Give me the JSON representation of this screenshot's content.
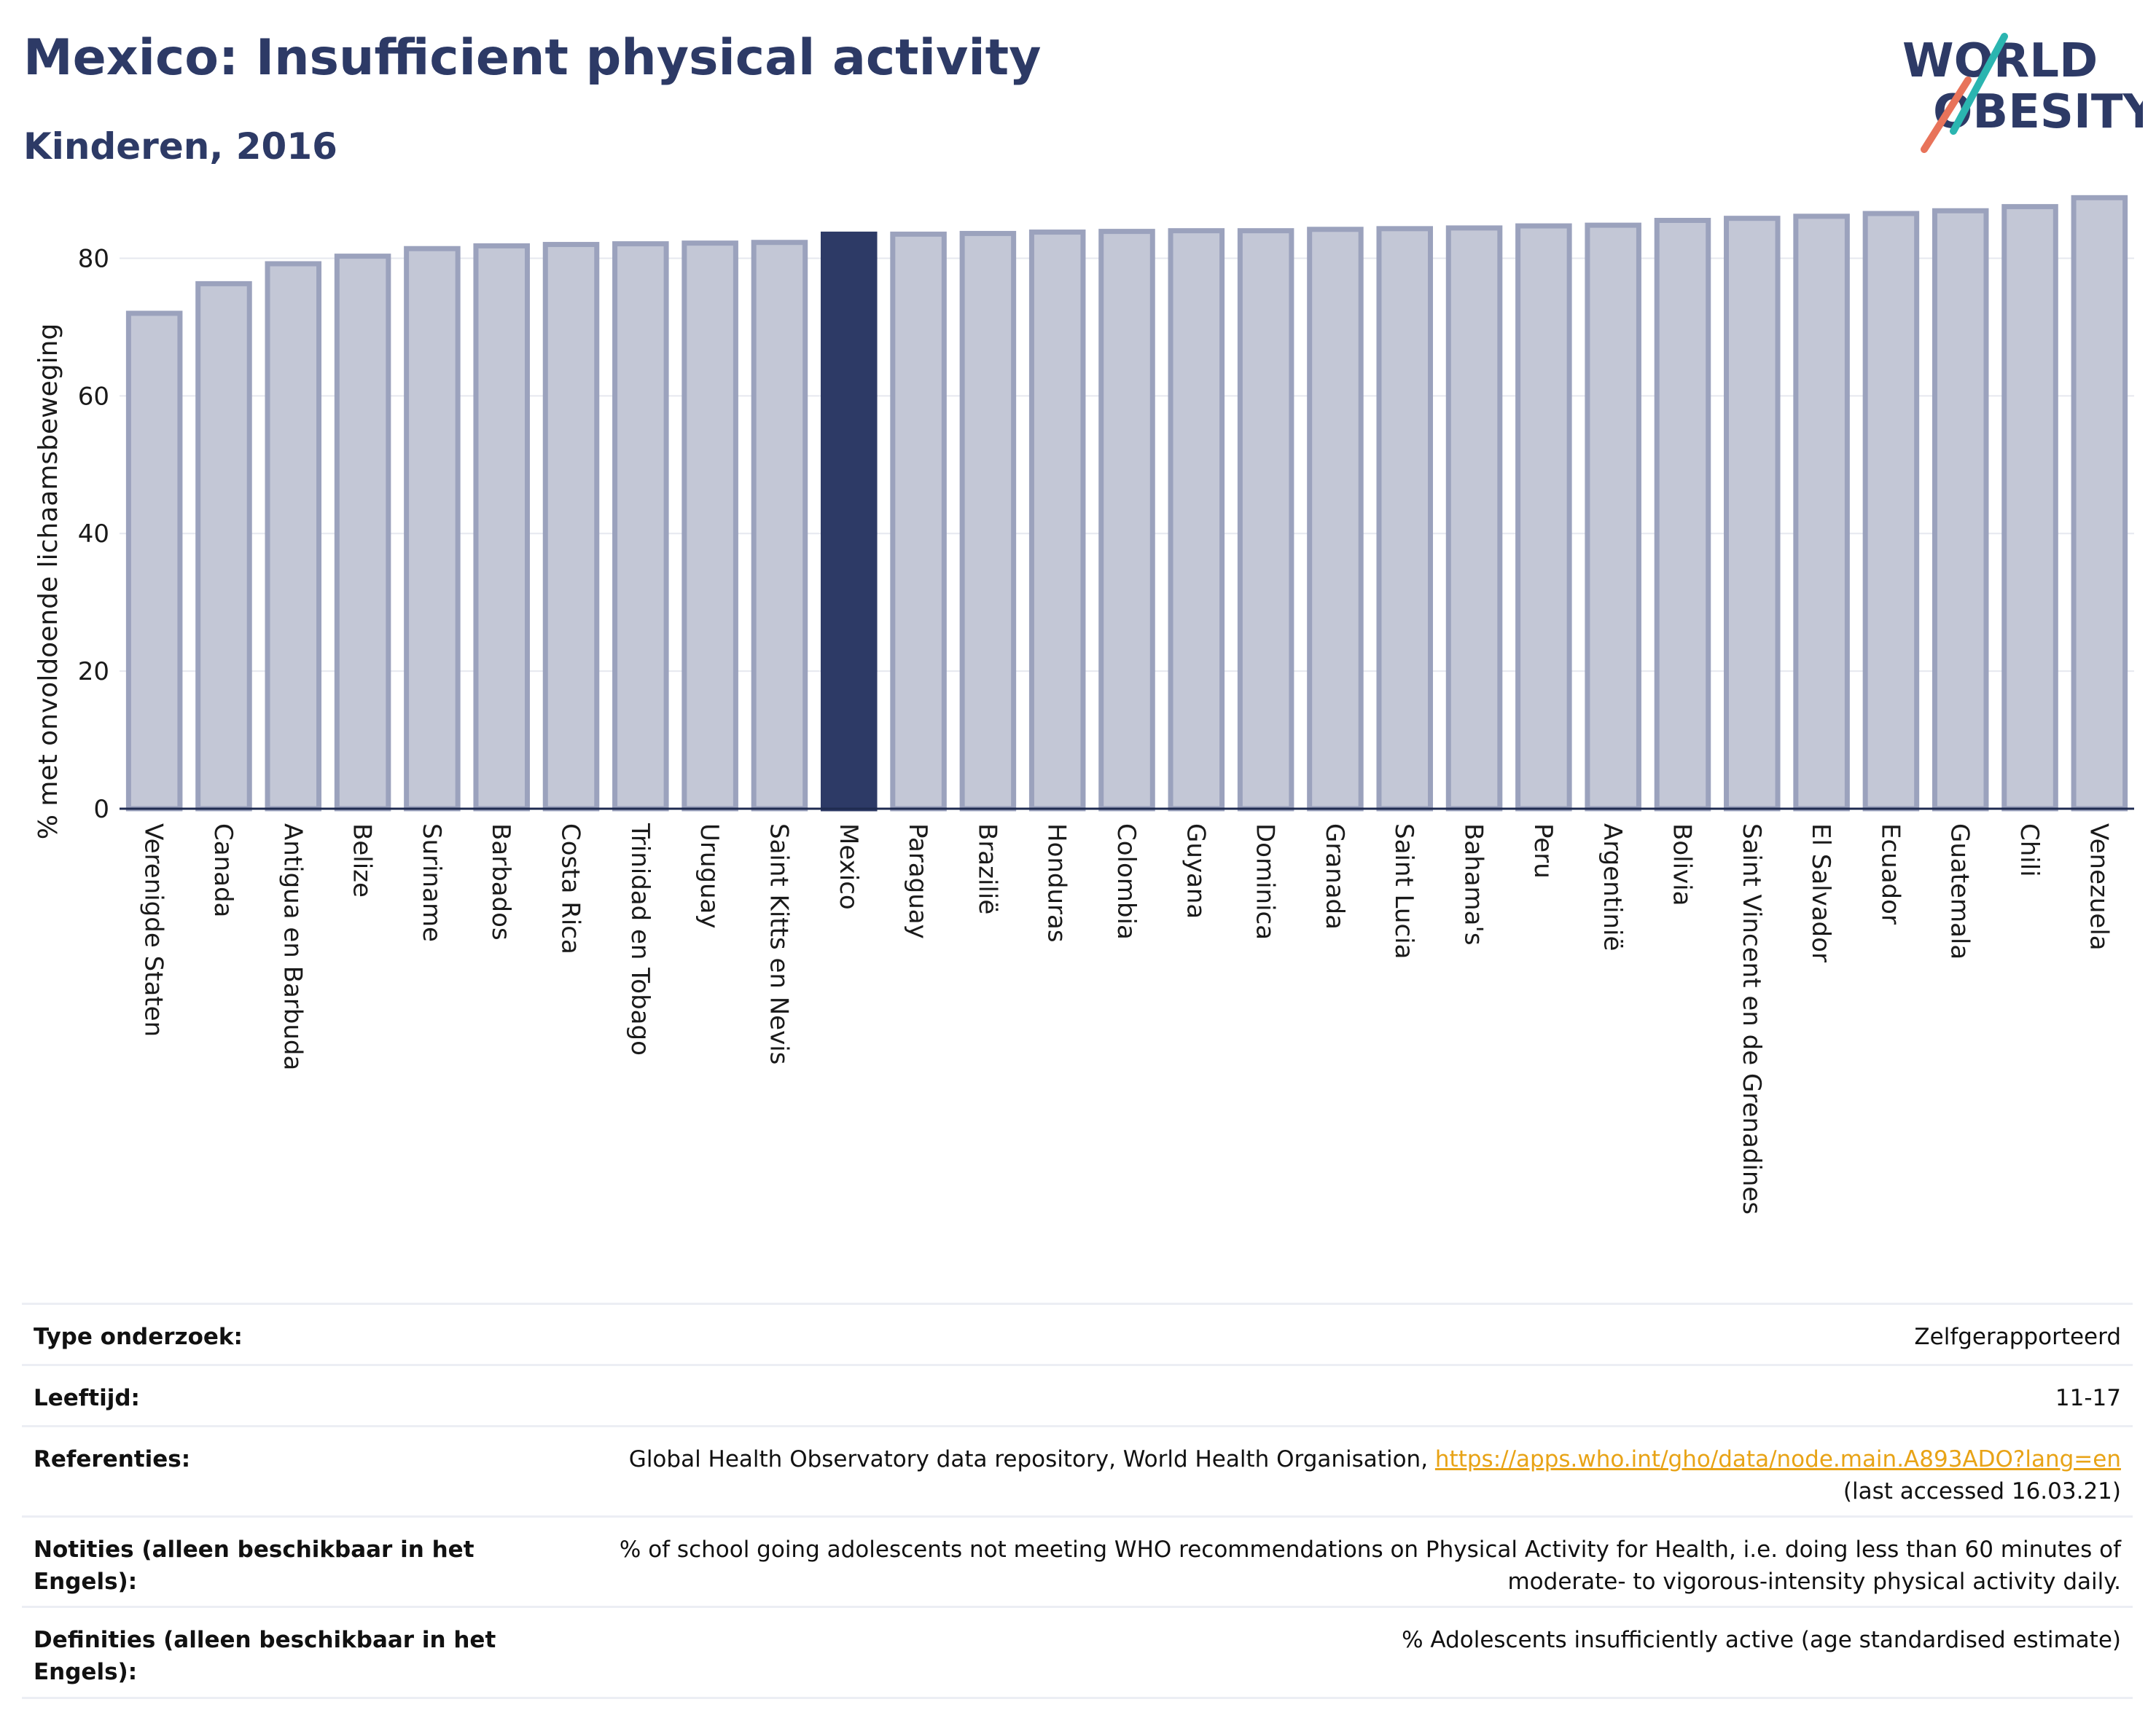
{
  "header": {
    "title": "Mexico: Insufficient physical activity",
    "subtitle": "Kinderen, 2016"
  },
  "logo": {
    "line1": "WORLD",
    "line2": "OBESITY",
    "colors": {
      "text": "#2d3a66",
      "slash_top": "#2bb5b0",
      "slash_bottom": "#e8735a"
    }
  },
  "chart_data": {
    "type": "bar",
    "ylabel": "% met onvoldoende lichaamsbeweging",
    "ylim": [
      0,
      90
    ],
    "yticks": [
      0,
      20,
      40,
      60,
      80
    ],
    "grid": true,
    "highlight": "Mexico",
    "colors": {
      "bar": "#c3c7d6",
      "bar_border": "#9ba2bd",
      "highlight": "#2d3a66"
    },
    "categories": [
      "Verenigde Staten",
      "Canada",
      "Antigua en Barbuda",
      "Belize",
      "Suriname",
      "Barbados",
      "Costa Rica",
      "Trinidad en Tobago",
      "Uruguay",
      "Saint Kitts en Nevis",
      "Mexico",
      "Paraguay",
      "Brazilië",
      "Honduras",
      "Colombia",
      "Guyana",
      "Dominica",
      "Granada",
      "Saint Lucia",
      "Bahama's",
      "Peru",
      "Argentinië",
      "Bolivia",
      "Saint Vincent en de Grenadines",
      "El Salvador",
      "Ecuador",
      "Guatemala",
      "Chili",
      "Venezuela"
    ],
    "values": [
      72.0,
      76.3,
      79.2,
      80.3,
      81.4,
      81.8,
      82.0,
      82.1,
      82.2,
      82.3,
      83.5,
      83.5,
      83.6,
      83.8,
      83.9,
      84.0,
      84.0,
      84.2,
      84.3,
      84.4,
      84.7,
      84.8,
      85.5,
      85.8,
      86.1,
      86.5,
      86.9,
      87.5,
      88.8
    ]
  },
  "info": {
    "rows": [
      {
        "label": "Type onderzoek:",
        "value": "Zelfgerapporteerd"
      },
      {
        "label": "Leeftijd:",
        "value": "11-17"
      },
      {
        "label": "Referenties:",
        "value": "Global Health Observatory data repository, World Health Organisation, ",
        "link": "https://apps.who.int/gho/data/node.main.A893ADO?lang=en",
        "value2": "(last accessed 16.03.21)"
      },
      {
        "label": "Notities (alleen beschikbaar in het Engels):",
        "value": "% of school going adolescents not meeting WHO recommendations on Physical Activity for Health, i.e. doing less than 60 minutes of moderate- to vigorous-intensity physical activity daily."
      },
      {
        "label": "Definities (alleen beschikbaar in het Engels):",
        "value": "% Adolescents insufficiently active (age standardised estimate)"
      }
    ]
  }
}
